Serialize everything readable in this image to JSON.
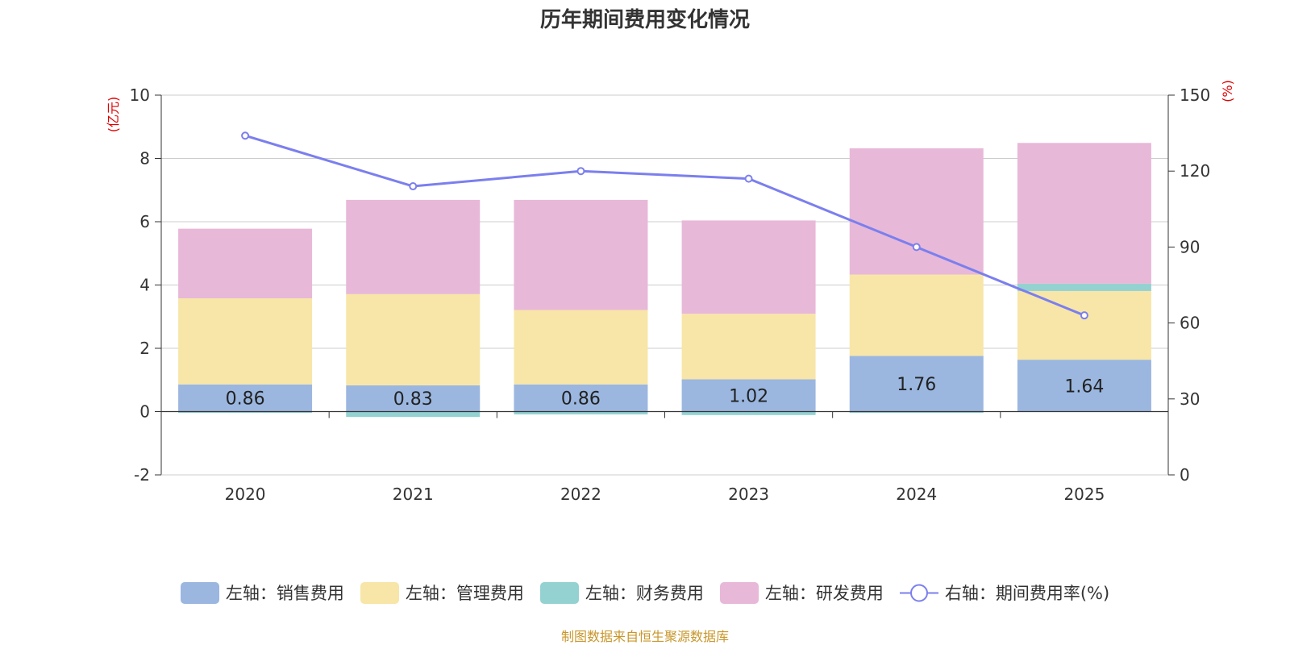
{
  "chart_data": {
    "type": "bar",
    "stacked": true,
    "title": "历年期间费用变化情况",
    "categories": [
      "2020",
      "2021",
      "2022",
      "2023",
      "2024",
      "2025"
    ],
    "left_axis": {
      "unit": "(亿元)",
      "ylim": [
        -2,
        10
      ],
      "ticks": [
        "-2",
        "0",
        "2",
        "4",
        "6",
        "8",
        "10"
      ]
    },
    "right_axis": {
      "unit": "(%)",
      "ylim": [
        0,
        150
      ],
      "ticks": [
        "0",
        "30",
        "60",
        "90",
        "120",
        "150"
      ]
    },
    "series": [
      {
        "name": "左轴：销售费用",
        "type": "bar",
        "color": "#9bb7e0",
        "values": [
          0.86,
          0.83,
          0.86,
          1.02,
          1.76,
          1.64
        ],
        "labels": [
          "0.86",
          "0.83",
          "0.86",
          "1.02",
          "1.76",
          "1.64"
        ]
      },
      {
        "name": "左轴：管理费用",
        "type": "bar",
        "color": "#f8e6a8",
        "values": [
          2.72,
          2.88,
          2.35,
          2.07,
          2.57,
          2.17
        ]
      },
      {
        "name": "左轴：财务费用",
        "type": "bar",
        "color": "#94d2d2",
        "values": [
          -0.04,
          -0.17,
          -0.09,
          -0.11,
          -0.04,
          0.23
        ]
      },
      {
        "name": "左轴：研发费用",
        "type": "bar",
        "color": "#e8b8d8",
        "values": [
          2.2,
          2.98,
          3.48,
          2.95,
          3.99,
          4.45
        ]
      },
      {
        "name": "右轴：期间费用率(%)",
        "type": "line",
        "color": "#7b7fee",
        "values": [
          134,
          114,
          120,
          117,
          90,
          63
        ]
      }
    ]
  },
  "source": "制图数据来自恒生聚源数据库"
}
